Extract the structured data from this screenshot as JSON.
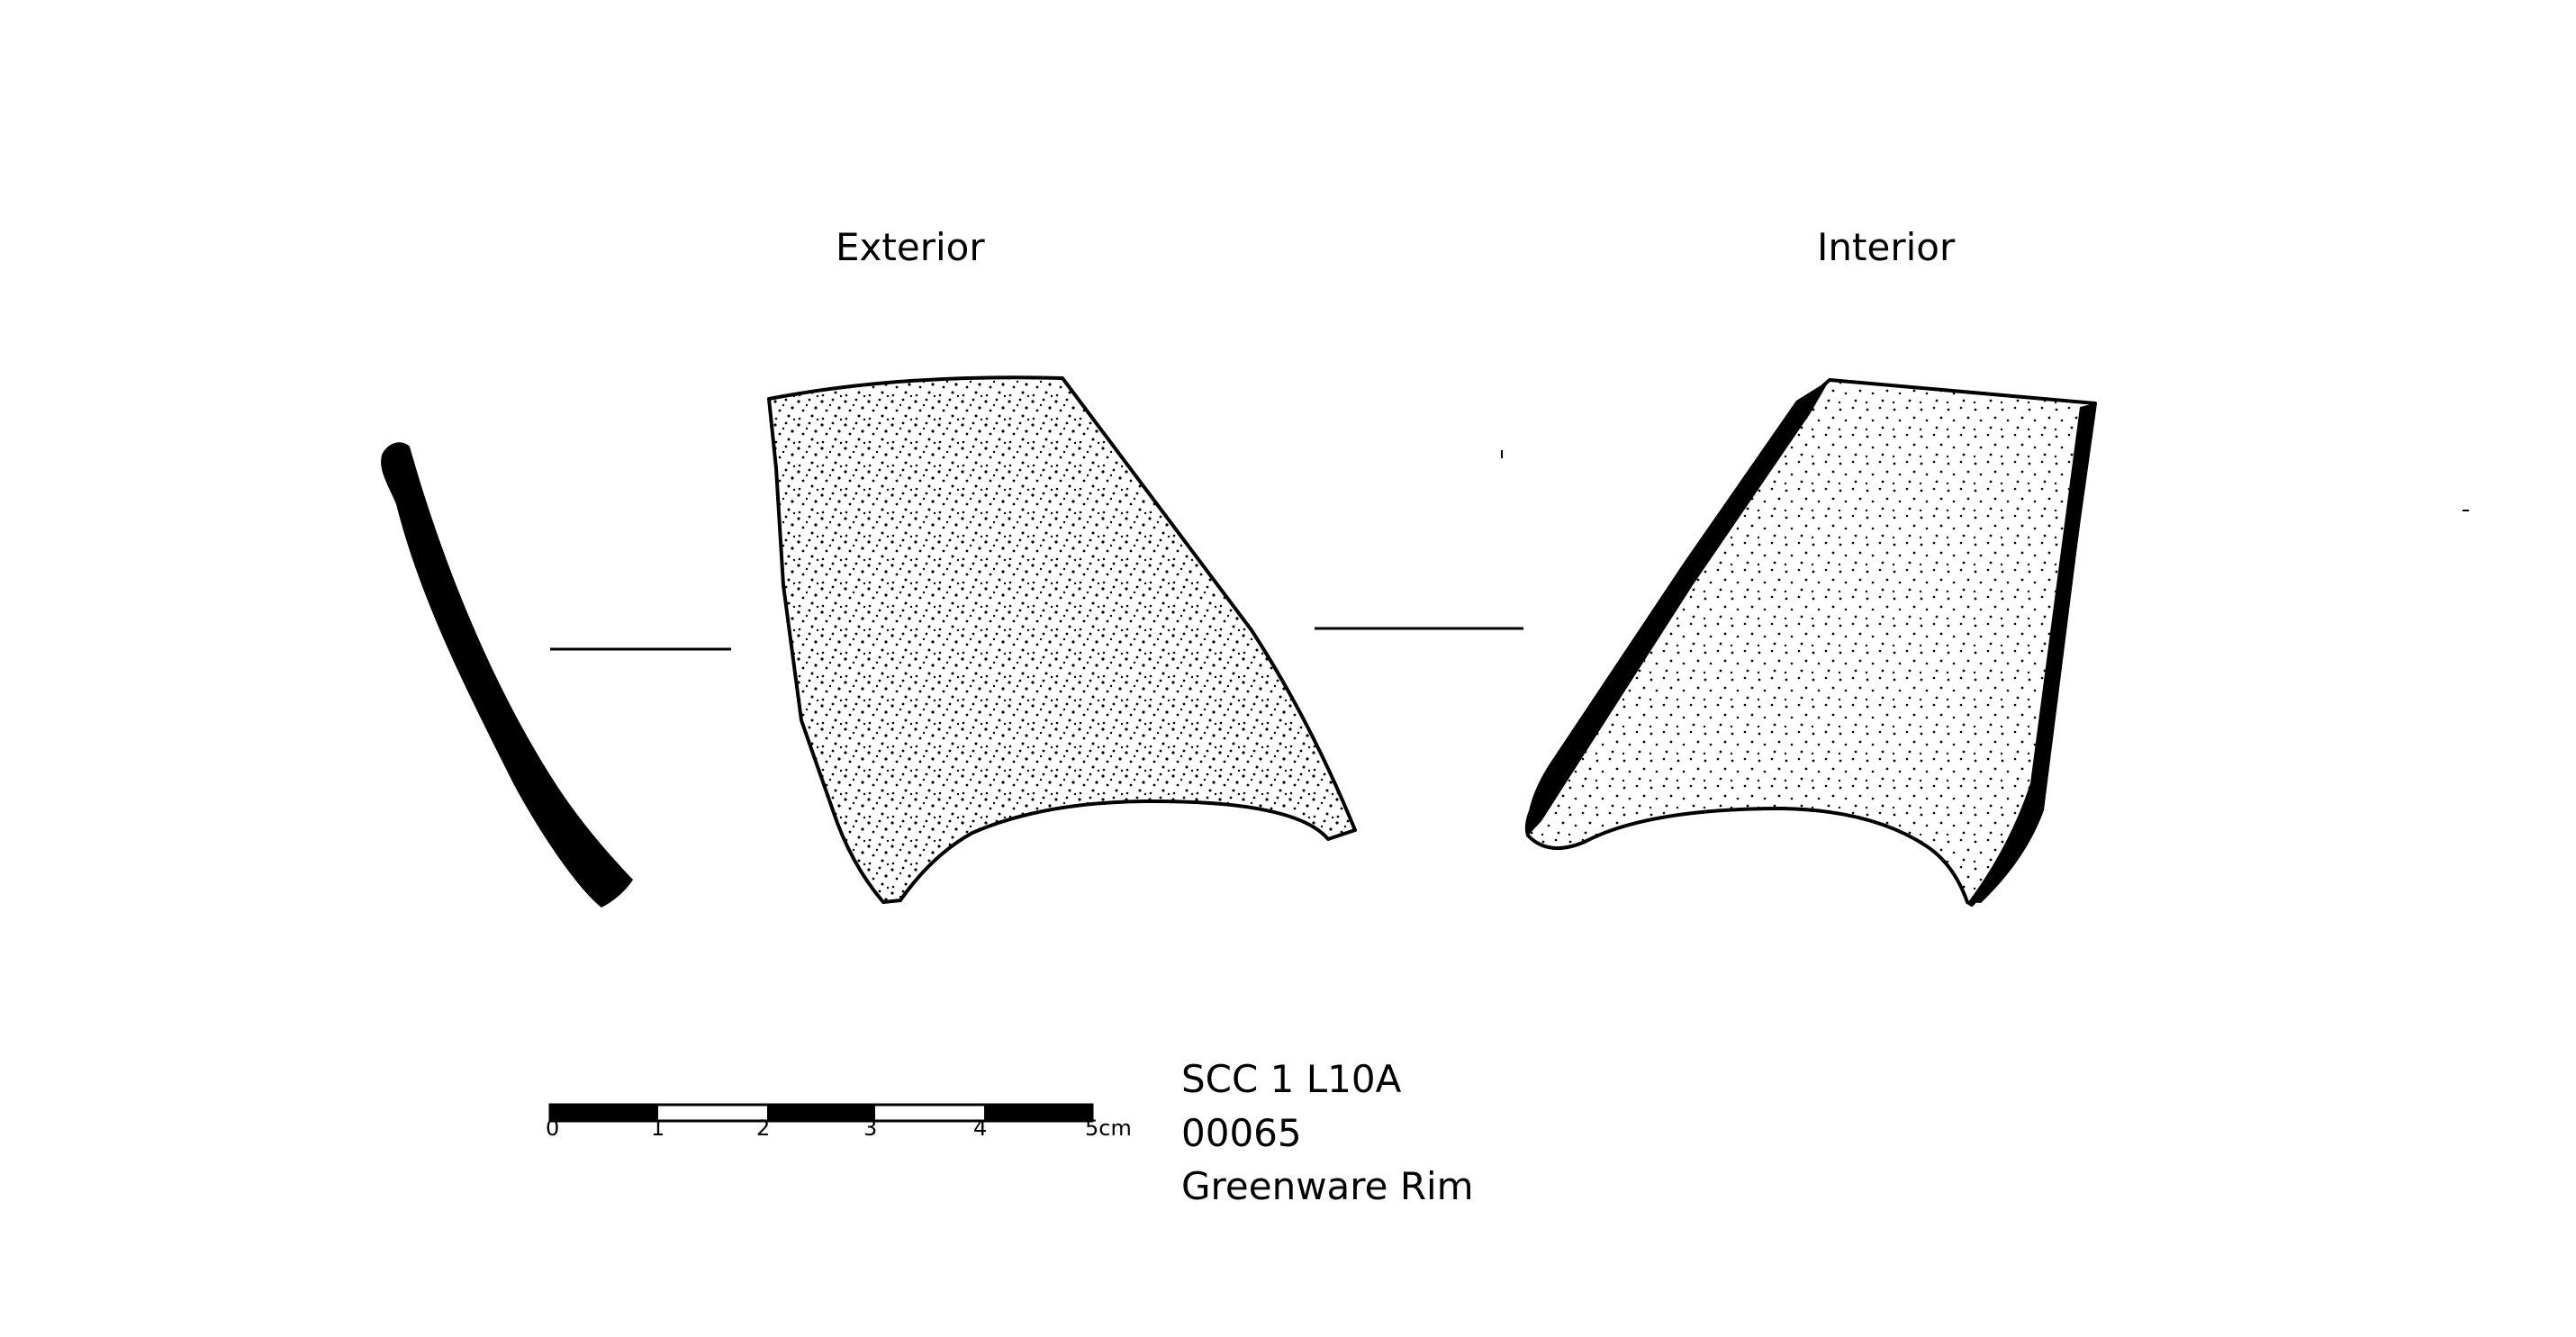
{
  "views": {
    "exterior_label": "Exterior",
    "interior_label": "Interior"
  },
  "scale_bar": {
    "ticks": [
      "0",
      "1",
      "2",
      "3",
      "4",
      "5cm"
    ]
  },
  "catalog": {
    "lines": [
      "SCC 1 L10A",
      "00065",
      "Greenware Rim"
    ]
  },
  "colors": {
    "ink": "#000000",
    "paper": "#ffffff"
  }
}
